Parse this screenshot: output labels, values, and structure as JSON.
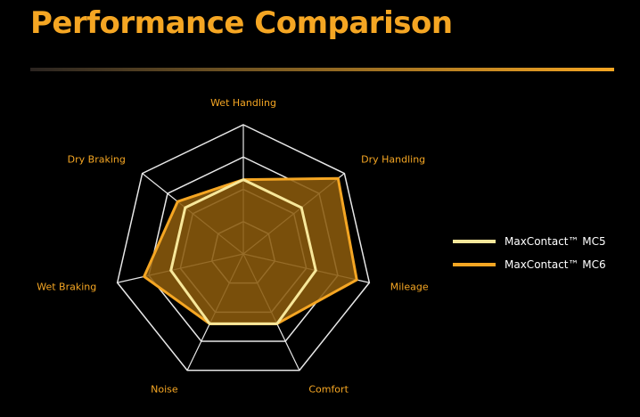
{
  "header": {
    "title": "Performance Comparison"
  },
  "colors": {
    "accent": "#f5a623",
    "grid": "#e8e8e8",
    "mc5_line": "#f7e79a",
    "mc6_line": "#f5a623",
    "mc6_fill": "#8a5a0c",
    "background": "#000000"
  },
  "chart_data": {
    "type": "radar",
    "title": "",
    "axes": [
      "Wet Handling",
      "Dry Handling",
      "Mileage",
      "Comfort",
      "Noise",
      "Wet Braking",
      "Dry Braking"
    ],
    "rings": 4,
    "range": [
      0,
      4
    ],
    "grid": true,
    "legend_position": "right",
    "series": [
      {
        "name": "MaxContact™ MC6",
        "values": [
          2.3,
          3.75,
          3.6,
          2.4,
          2.4,
          3.15,
          2.6
        ]
      },
      {
        "name": "MaxContact™ MC5",
        "values": [
          2.3,
          2.3,
          2.3,
          2.4,
          2.4,
          2.3,
          2.3
        ]
      }
    ]
  }
}
